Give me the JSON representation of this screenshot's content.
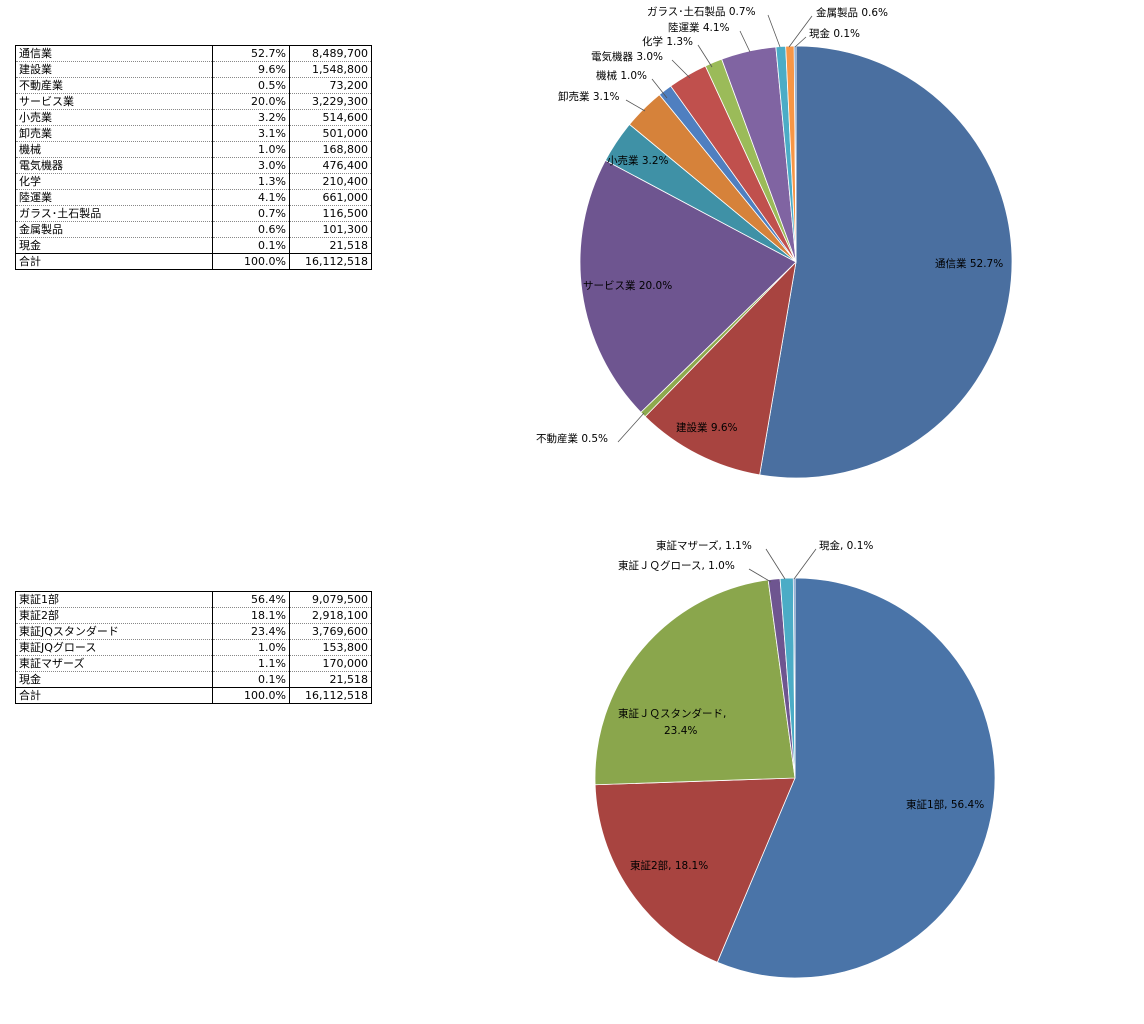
{
  "table1": {
    "rows": [
      {
        "name": "通信業",
        "pct": "52.7%",
        "value": "8,489,700"
      },
      {
        "name": "建設業",
        "pct": "9.6%",
        "value": "1,548,800"
      },
      {
        "name": "不動産業",
        "pct": "0.5%",
        "value": "73,200"
      },
      {
        "name": "サービス業",
        "pct": "20.0%",
        "value": "3,229,300"
      },
      {
        "name": "小売業",
        "pct": "3.2%",
        "value": "514,600"
      },
      {
        "name": "卸売業",
        "pct": "3.1%",
        "value": "501,000"
      },
      {
        "name": "機械",
        "pct": "1.0%",
        "value": "168,800"
      },
      {
        "name": "電気機器",
        "pct": "3.0%",
        "value": "476,400"
      },
      {
        "name": "化学",
        "pct": "1.3%",
        "value": "210,400"
      },
      {
        "name": "陸運業",
        "pct": "4.1%",
        "value": "661,000"
      },
      {
        "name": "ガラス･土石製品",
        "pct": "0.7%",
        "value": "116,500"
      },
      {
        "name": "金属製品",
        "pct": "0.6%",
        "value": "101,300"
      },
      {
        "name": "現金",
        "pct": "0.1%",
        "value": "21,518"
      }
    ],
    "total": {
      "name": "合計",
      "pct": "100.0%",
      "value": "16,112,518"
    }
  },
  "table2": {
    "rows": [
      {
        "name": "東証1部",
        "pct": "56.4%",
        "value": "9,079,500"
      },
      {
        "name": "東証2部",
        "pct": "18.1%",
        "value": "2,918,100"
      },
      {
        "name": "東証JQスタンダード",
        "pct": "23.4%",
        "value": "3,769,600"
      },
      {
        "name": "東証JQグロース",
        "pct": "1.0%",
        "value": "153,800"
      },
      {
        "name": "東証マザーズ",
        "pct": "1.1%",
        "value": "170,000"
      },
      {
        "name": "現金",
        "pct": "0.1%",
        "value": "21,518"
      }
    ],
    "total": {
      "name": "合計",
      "pct": "100.0%",
      "value": "16,112,518"
    }
  },
  "chart_data": [
    {
      "type": "pie",
      "categories": [
        "通信業",
        "建設業",
        "不動産業",
        "サービス業",
        "小売業",
        "卸売業",
        "機械",
        "電気機器",
        "化学",
        "陸運業",
        "ガラス･土石製品",
        "金属製品",
        "現金"
      ],
      "values": [
        8489700,
        1548800,
        73200,
        3229300,
        514600,
        501000,
        168800,
        476400,
        210400,
        661000,
        116500,
        101300,
        21518
      ],
      "labels": [
        "通信業 52.7%",
        "建設業 9.6%",
        "不動産業 0.5%",
        "サービス業 20.0%",
        "小売業 3.2%",
        "卸売業 3.1%",
        "機械 1.0%",
        "電気機器 3.0%",
        "化学 1.3%",
        "陸運業 4.1%",
        "ガラス･土石製品 0.7%",
        "金属製品 0.6%",
        "現金 0.1%"
      ],
      "colors": [
        "#4a6fa0",
        "#a84440",
        "#8eaa4e",
        "#6e5590",
        "#3f91a6",
        "#d6823a",
        "#4f7fc0",
        "#c0504d",
        "#9bbb59",
        "#8064a2",
        "#4bacc6",
        "#f79646",
        "#4f81bd"
      ],
      "start_angle_deg": 0,
      "direction": "clockwise"
    },
    {
      "type": "pie",
      "categories": [
        "東証1部",
        "東証2部",
        "東証ＪＱスタンダード",
        "東証ＪＱグロース",
        "東証マザーズ",
        "現金"
      ],
      "values": [
        9079500,
        2918100,
        3769600,
        153800,
        170000,
        21518
      ],
      "labels": [
        "東証1部, 56.4%",
        "東証2部, 18.1%",
        "東証ＪＱスタンダード, 23.4%",
        "東証ＪＱグロース, 1.0%",
        "東証マザーズ, 1.1%",
        "現金, 0.1%"
      ],
      "colors": [
        "#4a74a8",
        "#a84440",
        "#8aa64c",
        "#6e5590",
        "#4bacc6",
        "#4f81bd"
      ],
      "start_angle_deg": 0,
      "direction": "clockwise"
    }
  ]
}
